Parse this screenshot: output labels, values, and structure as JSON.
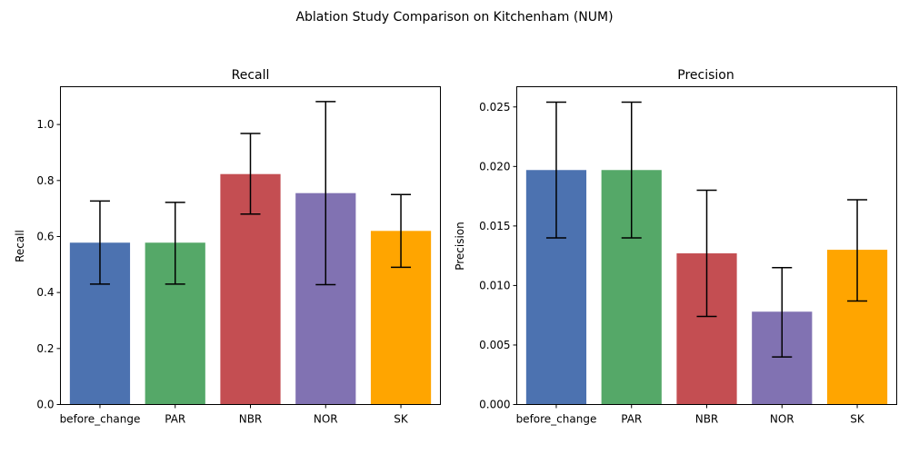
{
  "figure": {
    "suptitle": "Ablation Study Comparison on Kitchenham (NUM)"
  },
  "chart_data": [
    {
      "type": "bar",
      "title": "Recall",
      "xlabel": "",
      "ylabel": "Recall",
      "categories": [
        "before_change",
        "PAR",
        "NBR",
        "NOR",
        "SK"
      ],
      "values": [
        0.578,
        0.578,
        0.823,
        0.755,
        0.62
      ],
      "error_low": [
        0.43,
        0.43,
        0.68,
        0.428,
        0.49
      ],
      "error_high": [
        0.727,
        0.722,
        0.968,
        1.082,
        0.75
      ],
      "colors": [
        "#4c72b0",
        "#55a868",
        "#c44e52",
        "#8172b2",
        "#ffa500"
      ],
      "ylim": [
        0,
        1.135
      ],
      "yticks": [
        0.0,
        0.2,
        0.4,
        0.6,
        0.8,
        1.0
      ],
      "ytick_labels": [
        "0.0",
        "0.2",
        "0.4",
        "0.6",
        "0.8",
        "1.0"
      ],
      "grid": false,
      "legend": null
    },
    {
      "type": "bar",
      "title": "Precision",
      "xlabel": "",
      "ylabel": "Precision",
      "categories": [
        "before_change",
        "PAR",
        "NBR",
        "NOR",
        "SK"
      ],
      "values": [
        0.0197,
        0.0197,
        0.0127,
        0.0078,
        0.013
      ],
      "error_low": [
        0.014,
        0.014,
        0.0074,
        0.004,
        0.0087
      ],
      "error_high": [
        0.0254,
        0.0254,
        0.018,
        0.0115,
        0.0172
      ],
      "colors": [
        "#4c72b0",
        "#55a868",
        "#c44e52",
        "#8172b2",
        "#ffa500"
      ],
      "ylim": [
        0,
        0.0267
      ],
      "yticks": [
        0.0,
        0.005,
        0.01,
        0.015,
        0.02,
        0.025
      ],
      "ytick_labels": [
        "0.000",
        "0.005",
        "0.010",
        "0.015",
        "0.020",
        "0.025"
      ],
      "grid": false,
      "legend": null
    }
  ]
}
